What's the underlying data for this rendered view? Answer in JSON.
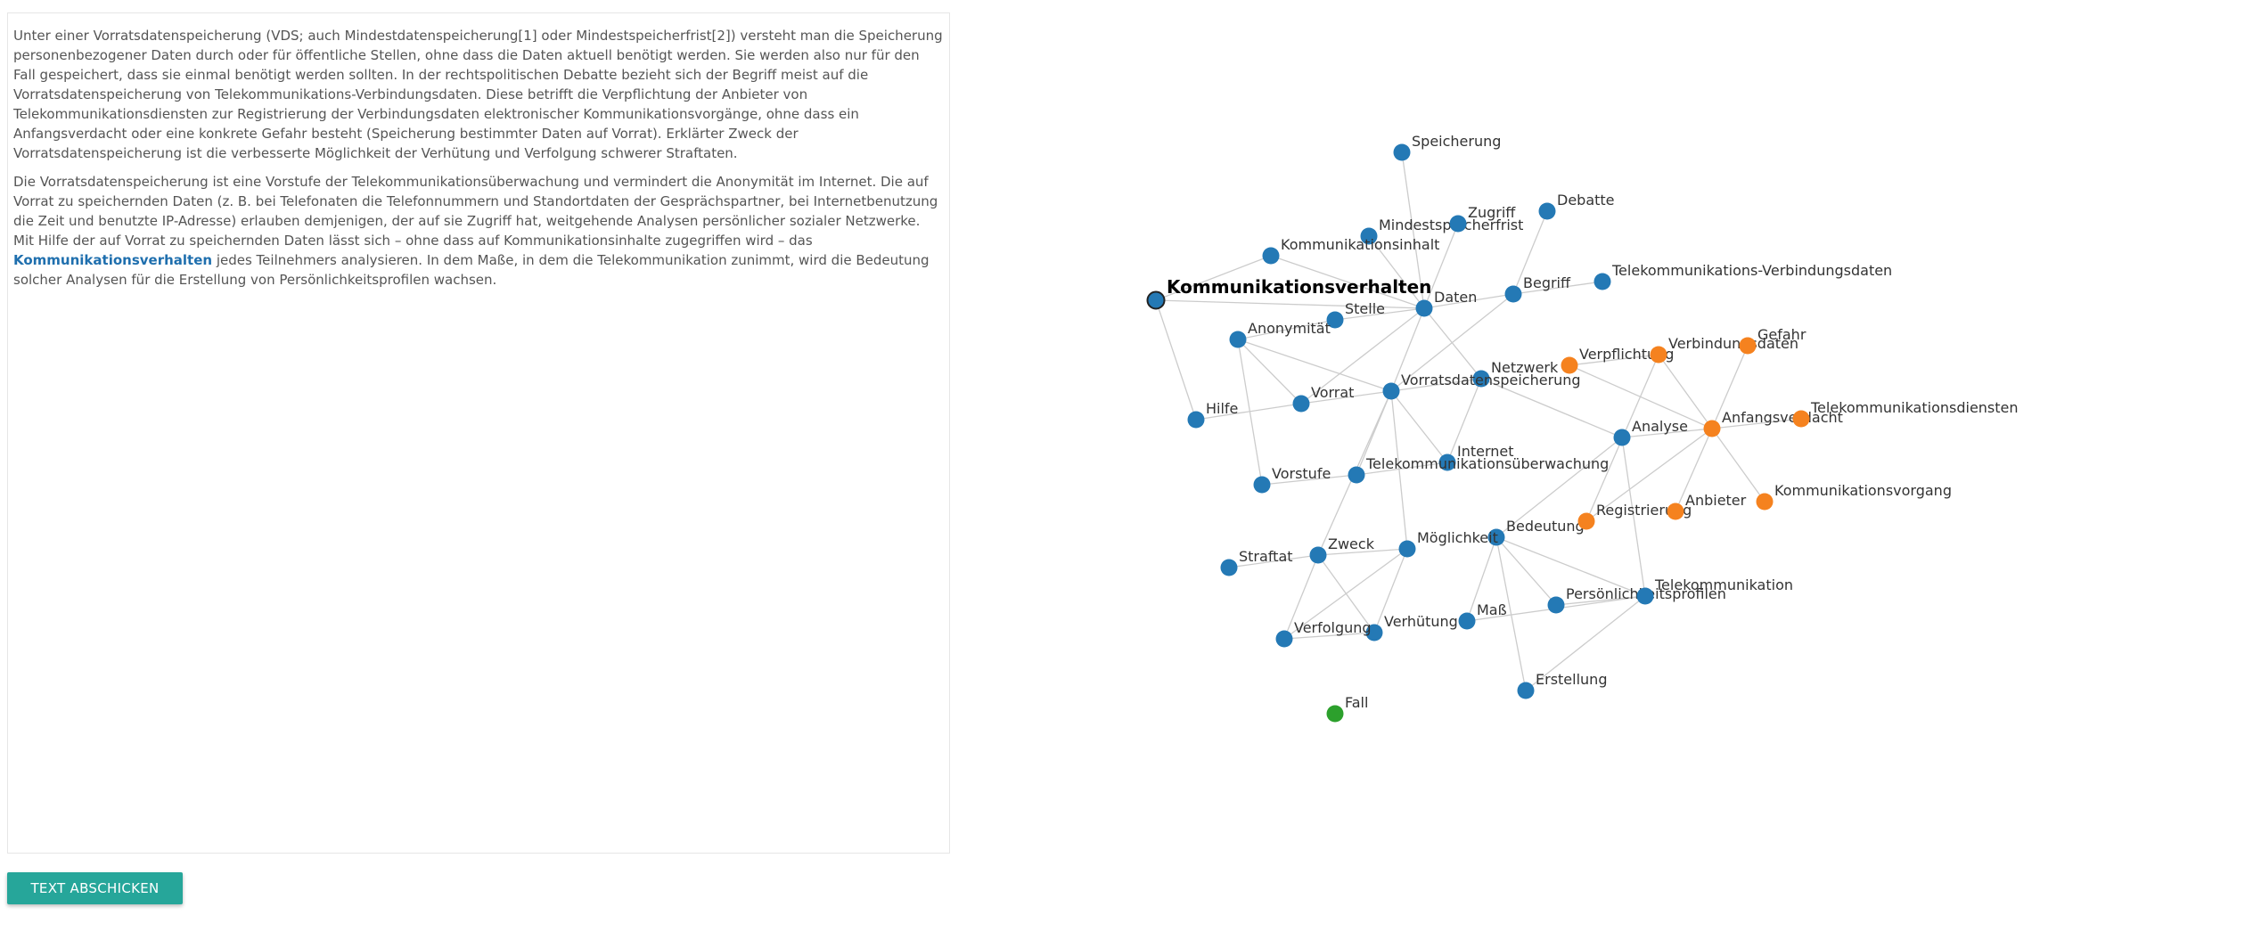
{
  "text": {
    "paragraph1": "Unter einer Vorratsdatenspeicherung (VDS; auch Mindestdatenspeicherung[1] oder Mindestspeicherfrist[2]) versteht man die Speicherung personenbezogener Daten durch oder für öffentliche Stellen, ohne dass die Daten aktuell benötigt werden. Sie werden also nur für den Fall gespeichert, dass sie einmal benötigt werden sollten. In der rechtspolitischen Debatte bezieht sich der Begriff meist auf die Vorratsdatenspeicherung von Telekommunikations-Verbindungsdaten. Diese betrifft die Verpflichtung der Anbieter von Telekommunikationsdiensten zur Registrierung der Verbindungsdaten elektronischer Kommunikationsvorgänge, ohne dass ein Anfangsverdacht oder eine konkrete Gefahr besteht (Speicherung bestimmter Daten auf Vorrat). Erklärter Zweck der Vorratsdatenspeicherung ist die verbesserte Möglichkeit der Verhütung und Verfolgung schwerer Straftaten.",
    "paragraph2_before": "Die Vorratsdatenspeicherung ist eine Vorstufe der Telekommunikationsüberwachung und vermindert die Anonymität im Internet. Die auf Vorrat zu speichernden Daten (z. B. bei Telefonaten die Telefonnummern und Standortdaten der Gesprächspartner, bei Internetbenutzung die Zeit und benutzte IP-Adresse) erlauben demjenigen, der auf sie Zugriff hat, weitgehende Analysen persönlicher sozialer Netzwerke. Mit Hilfe der auf Vorrat zu speichernden Daten lässt sich – ohne dass auf Kommunikationsinhalte zugegriffen wird – das ",
    "paragraph2_highlight": "Kommunikationsverhalten",
    "paragraph2_after": " jedes Teilnehmers analysieren. In dem Maße, in dem die Telekommunikation zunimmt, wird die Bedeutung solcher Analysen für die Erstellung von Persönlichkeitsprofilen wachsen."
  },
  "submit_label": "TEXT ABSCHICKEN",
  "colors": {
    "accent_button": "#26a69a",
    "highlight_text": "#1f6fae",
    "group_blue": "#2479b5",
    "group_orange": "#f5821f",
    "group_green": "#2ca02c",
    "edge": "#cccccc"
  },
  "graph": {
    "active_node": "Kommunikationsverhalten",
    "nodes": [
      {
        "id": "Kommunikationsverhalten",
        "group": "blue"
      },
      {
        "id": "Speicherung",
        "group": "blue"
      },
      {
        "id": "Mindestspeicherfrist",
        "group": "blue"
      },
      {
        "id": "Zugriff",
        "group": "blue"
      },
      {
        "id": "Debatte",
        "group": "blue"
      },
      {
        "id": "Kommunikationsinhalt",
        "group": "blue"
      },
      {
        "id": "Daten",
        "group": "blue"
      },
      {
        "id": "Begriff",
        "group": "blue"
      },
      {
        "id": "Telekommunikations-Verbindungsdaten",
        "group": "blue"
      },
      {
        "id": "Stelle",
        "group": "blue"
      },
      {
        "id": "Anonymität",
        "group": "blue"
      },
      {
        "id": "Netzwerk",
        "group": "blue"
      },
      {
        "id": "Vorratsdatenspeicherung",
        "group": "blue"
      },
      {
        "id": "Vorrat",
        "group": "blue"
      },
      {
        "id": "Hilfe",
        "group": "blue"
      },
      {
        "id": "Internet",
        "group": "blue"
      },
      {
        "id": "Telekommunikationsüberwachung",
        "group": "blue"
      },
      {
        "id": "Vorstufe",
        "group": "blue"
      },
      {
        "id": "Analyse",
        "group": "blue"
      },
      {
        "id": "Bedeutung",
        "group": "blue"
      },
      {
        "id": "Möglichkeit",
        "group": "blue"
      },
      {
        "id": "Zweck",
        "group": "blue"
      },
      {
        "id": "Straftat",
        "group": "blue"
      },
      {
        "id": "Maß",
        "group": "blue"
      },
      {
        "id": "Persönlichkeitsprofilen",
        "group": "blue"
      },
      {
        "id": "Telekommunikation",
        "group": "blue"
      },
      {
        "id": "Verhütung",
        "group": "blue"
      },
      {
        "id": "Verfolgung",
        "group": "blue"
      },
      {
        "id": "Erstellung",
        "group": "blue"
      },
      {
        "id": "Verpflichtung",
        "group": "orange"
      },
      {
        "id": "Verbindungsdaten",
        "group": "orange"
      },
      {
        "id": "Gefahr",
        "group": "orange"
      },
      {
        "id": "Anfangsverdacht",
        "group": "orange"
      },
      {
        "id": "Telekommunikationsdiensten",
        "group": "orange"
      },
      {
        "id": "Registrierung",
        "group": "orange"
      },
      {
        "id": "Anbieter",
        "group": "orange"
      },
      {
        "id": "Kommunikationsvorgang",
        "group": "orange"
      },
      {
        "id": "Fall",
        "group": "green"
      }
    ],
    "links": [
      [
        "Kommunikationsverhalten",
        "Kommunikationsinhalt"
      ],
      [
        "Kommunikationsverhalten",
        "Daten"
      ],
      [
        "Kommunikationsverhalten",
        "Hilfe"
      ],
      [
        "Speicherung",
        "Daten"
      ],
      [
        "Mindestspeicherfrist",
        "Daten"
      ],
      [
        "Zugriff",
        "Daten"
      ],
      [
        "Debatte",
        "Begriff"
      ],
      [
        "Kommunikationsinhalt",
        "Daten"
      ],
      [
        "Daten",
        "Stelle"
      ],
      [
        "Daten",
        "Netzwerk"
      ],
      [
        "Daten",
        "Vorratsdatenspeicherung"
      ],
      [
        "Daten",
        "Vorrat"
      ],
      [
        "Daten",
        "Begriff"
      ],
      [
        "Begriff",
        "Telekommunikations-Verbindungsdaten"
      ],
      [
        "Begriff",
        "Vorratsdatenspeicherung"
      ],
      [
        "Stelle",
        "Anonymität"
      ],
      [
        "Anonymität",
        "Vorratsdatenspeicherung"
      ],
      [
        "Anonymität",
        "Vorstufe"
      ],
      [
        "Anonymität",
        "Vorrat"
      ],
      [
        "Vorrat",
        "Hilfe"
      ],
      [
        "Vorratsdatenspeicherung",
        "Vorrat"
      ],
      [
        "Vorratsdatenspeicherung",
        "Telekommunikationsüberwachung"
      ],
      [
        "Vorratsdatenspeicherung",
        "Internet"
      ],
      [
        "Vorratsdatenspeicherung",
        "Zweck"
      ],
      [
        "Vorratsdatenspeicherung",
        "Möglichkeit"
      ],
      [
        "Vorratsdatenspeicherung",
        "Netzwerk"
      ],
      [
        "Netzwerk",
        "Analyse"
      ],
      [
        "Netzwerk",
        "Internet"
      ],
      [
        "Telekommunikationsüberwachung",
        "Vorstufe"
      ],
      [
        "Telekommunikationsüberwachung",
        "Internet"
      ],
      [
        "Analyse",
        "Bedeutung"
      ],
      [
        "Analyse",
        "Telekommunikation"
      ],
      [
        "Analyse",
        "Anfangsverdacht"
      ],
      [
        "Bedeutung",
        "Maß"
      ],
      [
        "Bedeutung",
        "Persönlichkeitsprofilen"
      ],
      [
        "Bedeutung",
        "Erstellung"
      ],
      [
        "Bedeutung",
        "Telekommunikation"
      ],
      [
        "Maß",
        "Telekommunikation"
      ],
      [
        "Persönlichkeitsprofilen",
        "Telekommunikation"
      ],
      [
        "Erstellung",
        "Telekommunikation"
      ],
      [
        "Möglichkeit",
        "Zweck"
      ],
      [
        "Möglichkeit",
        "Verhütung"
      ],
      [
        "Möglichkeit",
        "Verfolgung"
      ],
      [
        "Zweck",
        "Straftat"
      ],
      [
        "Zweck",
        "Verhütung"
      ],
      [
        "Zweck",
        "Verfolgung"
      ],
      [
        "Verhütung",
        "Verfolgung"
      ],
      [
        "Verpflichtung",
        "Verbindungsdaten"
      ],
      [
        "Verpflichtung",
        "Anfangsverdacht"
      ],
      [
        "Verbindungsdaten",
        "Anfangsverdacht"
      ],
      [
        "Gefahr",
        "Anfangsverdacht"
      ],
      [
        "Anfangsverdacht",
        "Telekommunikationsdiensten"
      ],
      [
        "Anfangsverdacht",
        "Registrierung"
      ],
      [
        "Anfangsverdacht",
        "Anbieter"
      ],
      [
        "Anfangsverdacht",
        "Kommunikationsvorgang"
      ],
      [
        "Registrierung",
        "Verbindungsdaten"
      ]
    ]
  }
}
